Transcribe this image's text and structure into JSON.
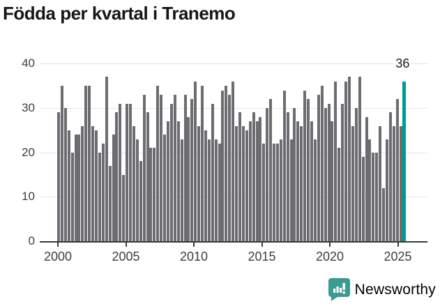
{
  "title": "Födda per kvartal i Tranemo",
  "colors": {
    "bar": "#6c6c71",
    "accent": "#009a93",
    "grid": "#e4e4e4",
    "axis": "#3a3a3a",
    "brand_teal": "#3c9a94"
  },
  "annotation": {
    "label": "36"
  },
  "footer": {
    "brand": "Newsworthy"
  },
  "chart_data": {
    "type": "bar",
    "title": "Födda per kvartal i Tranemo",
    "xlabel": "",
    "ylabel": "",
    "frequency": "quarterly",
    "x_start": "2000 Q1",
    "x_end": "2025 Q2",
    "values": [
      29,
      35,
      30,
      25,
      20,
      24,
      24,
      26,
      35,
      35,
      26,
      25,
      20,
      22,
      37,
      17,
      24,
      29,
      31,
      15,
      31,
      31,
      26,
      23,
      18,
      33,
      29,
      21,
      21,
      35,
      33,
      24,
      27,
      31,
      33,
      27,
      23,
      33,
      28,
      32,
      36,
      26,
      35,
      25,
      23,
      31,
      23,
      22,
      34,
      35,
      33,
      36,
      26,
      29,
      26,
      25,
      27,
      29,
      27,
      28,
      22,
      30,
      32,
      22,
      22,
      23,
      34,
      29,
      23,
      30,
      27,
      26,
      34,
      32,
      27,
      23,
      33,
      35,
      30,
      31,
      27,
      36,
      21,
      31,
      36,
      37,
      26,
      30,
      37,
      19,
      28,
      23,
      20,
      20,
      26,
      12,
      23,
      29,
      26,
      32,
      26,
      36
    ],
    "highlight_last_value": 36,
    "x_tick_labels": [
      "2000",
      "2005",
      "2010",
      "2015",
      "2020",
      "2025"
    ],
    "y_ticks": [
      0,
      10,
      20,
      30,
      40
    ],
    "ylim": [
      0,
      40
    ],
    "grid": "horizontal",
    "legend": "none"
  }
}
